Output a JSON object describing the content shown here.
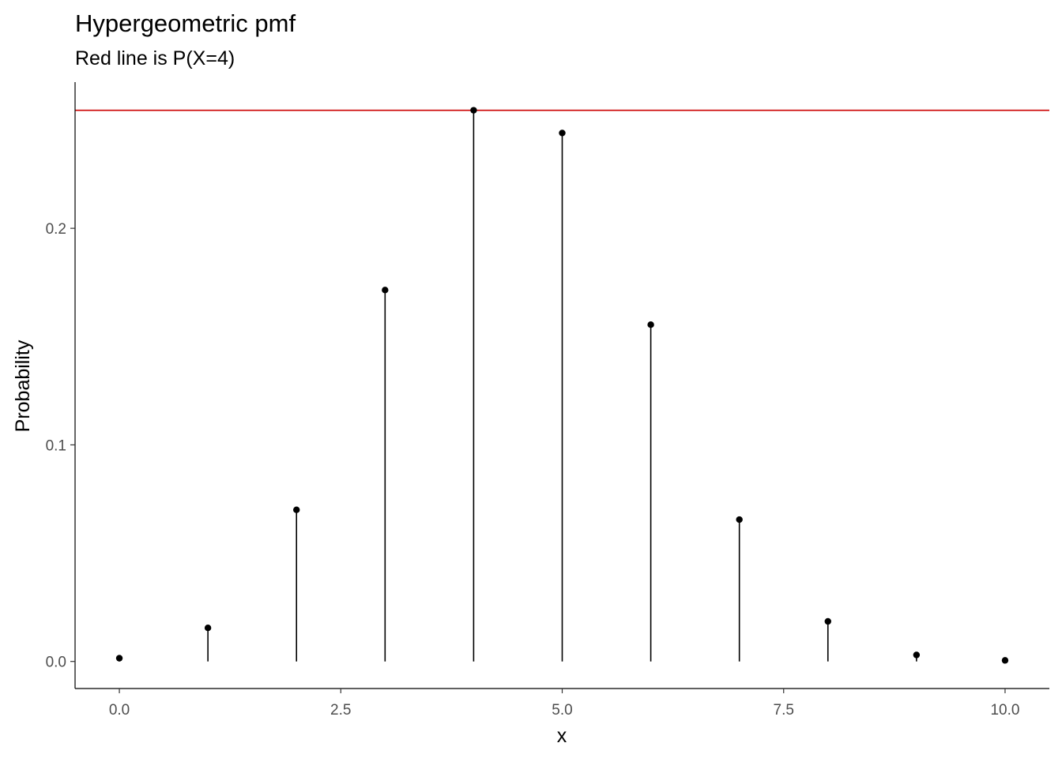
{
  "chart_data": {
    "type": "scatter",
    "title": "Hypergeometric pmf",
    "subtitle": "Red line is P(X=4)",
    "xlabel": "x",
    "ylabel": "Probability",
    "x": [
      0,
      1,
      2,
      3,
      4,
      5,
      6,
      7,
      8,
      9,
      10
    ],
    "y": [
      0.0015,
      0.0155,
      0.07,
      0.1715,
      0.2545,
      0.244,
      0.1555,
      0.0655,
      0.0185,
      0.003,
      0.0005
    ],
    "reference_line": {
      "y": 0.2545,
      "color": "#cc0000",
      "label": "P(X=4)"
    },
    "xlim": [
      -0.5,
      10.5
    ],
    "ylim": [
      -0.0125,
      0.2675
    ],
    "x_ticks": [
      0,
      2.5,
      5,
      7.5,
      10
    ],
    "x_tick_labels": [
      "0.0",
      "2.5",
      "5.0",
      "7.5",
      "10.0"
    ],
    "y_ticks": [
      0,
      0.1,
      0.2
    ],
    "y_tick_labels": [
      "0.0",
      "0.1",
      "0.2"
    ],
    "grid": false,
    "legend": "none",
    "mark_color": "#000000"
  }
}
